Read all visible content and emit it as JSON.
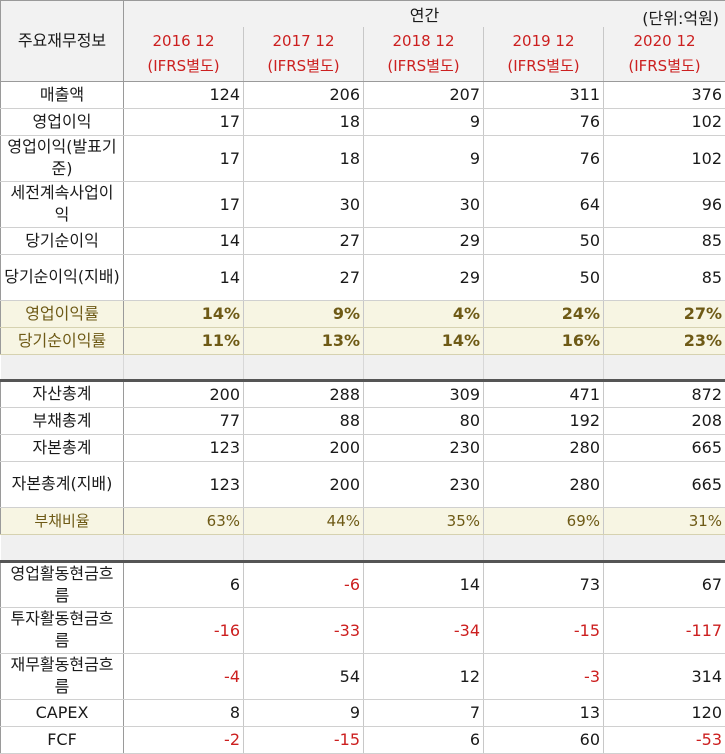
{
  "header": {
    "corner_label": "주요재무정보",
    "period_label": "연간",
    "unit_label": "(단위:억원)",
    "years": [
      {
        "year": "2016 12",
        "basis": "(IFRS별도)"
      },
      {
        "year": "2017 12",
        "basis": "(IFRS별도)"
      },
      {
        "year": "2018 12",
        "basis": "(IFRS별도)"
      },
      {
        "year": "2019 12",
        "basis": "(IFRS별도)"
      },
      {
        "year": "2020 12",
        "basis": "(IFRS별도)"
      }
    ]
  },
  "income": [
    {
      "label": "매출액",
      "values": [
        "124",
        "206",
        "207",
        "311",
        "376"
      ]
    },
    {
      "label": "영업이익",
      "values": [
        "17",
        "18",
        "9",
        "76",
        "102"
      ]
    },
    {
      "label": "영업이익(발표기준)",
      "values": [
        "17",
        "18",
        "9",
        "76",
        "102"
      ]
    },
    {
      "label": "세전계속사업이익",
      "values": [
        "17",
        "30",
        "30",
        "64",
        "96"
      ]
    },
    {
      "label": "당기순이익",
      "values": [
        "14",
        "27",
        "29",
        "50",
        "85"
      ]
    },
    {
      "label": "당기순이익(지배)",
      "values": [
        "14",
        "27",
        "29",
        "50",
        "85"
      ]
    }
  ],
  "income_ratios": [
    {
      "label": "영업이익률",
      "values": [
        "14%",
        "9%",
        "4%",
        "24%",
        "27%"
      ]
    },
    {
      "label": "당기순이익률",
      "values": [
        "11%",
        "13%",
        "14%",
        "16%",
        "23%"
      ]
    }
  ],
  "balance": [
    {
      "label": "자산총계",
      "values": [
        "200",
        "288",
        "309",
        "471",
        "872"
      ]
    },
    {
      "label": "부채총계",
      "values": [
        "77",
        "88",
        "80",
        "192",
        "208"
      ]
    },
    {
      "label": "자본총계",
      "values": [
        "123",
        "200",
        "230",
        "280",
        "665"
      ]
    },
    {
      "label": "자본총계(지배)",
      "values": [
        "123",
        "200",
        "230",
        "280",
        "665"
      ]
    }
  ],
  "balance_ratio": {
    "label": "부채비율",
    "values": [
      "63%",
      "44%",
      "35%",
      "69%",
      "31%"
    ]
  },
  "cashflow": [
    {
      "label": "영업활동현금흐름",
      "values": [
        "6",
        "-6",
        "14",
        "73",
        "67"
      ]
    },
    {
      "label": "투자활동현금흐름",
      "values": [
        "-16",
        "-33",
        "-34",
        "-15",
        "-117"
      ]
    },
    {
      "label": "재무활동현금흐름",
      "values": [
        "-4",
        "54",
        "12",
        "-3",
        "314"
      ]
    },
    {
      "label": "CAPEX",
      "values": [
        "8",
        "9",
        "7",
        "13",
        "120"
      ]
    },
    {
      "label": "FCF",
      "values": [
        "-2",
        "-15",
        "6",
        "60",
        "-53"
      ]
    }
  ]
}
